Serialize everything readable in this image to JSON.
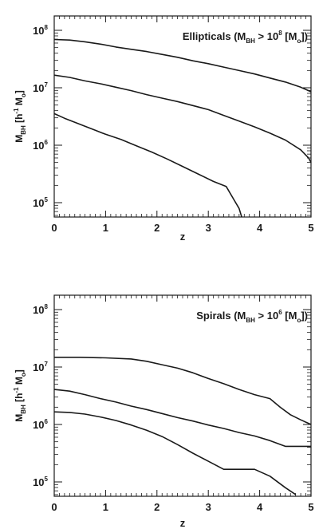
{
  "chart_data": [
    {
      "type": "line",
      "annotation": {
        "main": "Ellipticals (M",
        "sub": "BH",
        "rest": " > 10",
        "sup": "8",
        "tail": " [M",
        "sub2": "o",
        "end": "])"
      },
      "xlabel": "z",
      "ylabel": {
        "main": "M",
        "sub": "BH",
        "rest": " [h",
        "sup": "-1",
        "tail": " M",
        "sub2": "o",
        "end": "]"
      },
      "xlim": [
        0,
        5
      ],
      "ylim_log10": [
        4.75,
        8.25
      ],
      "yscale": "log",
      "xticks": [
        "0",
        "1",
        "2",
        "3",
        "4",
        "5"
      ],
      "yticks": [
        {
          "base": "10",
          "exp": "5"
        },
        {
          "base": "10",
          "exp": "6"
        },
        {
          "base": "10",
          "exp": "7"
        },
        {
          "base": "10",
          "exp": "8"
        }
      ],
      "grid": false,
      "series": [
        {
          "x": [
            0,
            0.3,
            0.6,
            0.9,
            1.2,
            1.5,
            1.8,
            2.1,
            2.4,
            2.7,
            3.0,
            3.3,
            3.6,
            3.9,
            4.2,
            4.5,
            4.8,
            5.0
          ],
          "log10_y": [
            7.84,
            7.83,
            7.8,
            7.76,
            7.71,
            7.67,
            7.63,
            7.58,
            7.53,
            7.47,
            7.42,
            7.36,
            7.3,
            7.24,
            7.17,
            7.1,
            7.01,
            6.93
          ]
        },
        {
          "x": [
            0,
            0.3,
            0.6,
            0.9,
            1.2,
            1.5,
            1.8,
            2.1,
            2.4,
            2.7,
            3.0,
            3.3,
            3.6,
            3.9,
            4.2,
            4.5,
            4.8,
            4.95,
            5.0
          ],
          "log10_y": [
            7.22,
            7.18,
            7.12,
            7.07,
            7.01,
            6.95,
            6.88,
            6.82,
            6.76,
            6.69,
            6.62,
            6.52,
            6.42,
            6.32,
            6.21,
            6.09,
            5.92,
            5.78,
            5.7
          ]
        },
        {
          "x": [
            0,
            0.2,
            0.4,
            0.6,
            0.8,
            1.0,
            1.3,
            1.6,
            1.9,
            2.2,
            2.5,
            2.8,
            3.1,
            3.35,
            3.5,
            3.6,
            3.65
          ],
          "log10_y": [
            6.55,
            6.47,
            6.4,
            6.33,
            6.26,
            6.19,
            6.1,
            5.99,
            5.88,
            5.76,
            5.63,
            5.5,
            5.37,
            5.28,
            5.05,
            4.9,
            4.75
          ]
        }
      ]
    },
    {
      "type": "line",
      "annotation": {
        "main": "Spirals (M",
        "sub": "BH",
        "rest": " > 10",
        "sup": "6",
        "tail": " [M",
        "sub2": "o",
        "end": "])"
      },
      "xlabel": "z",
      "ylabel": {
        "main": "M",
        "sub": "BH",
        "rest": " [h",
        "sup": "-1",
        "tail": " M",
        "sub2": "o",
        "end": "]"
      },
      "xlim": [
        0,
        5
      ],
      "ylim_log10": [
        4.75,
        8.25
      ],
      "yscale": "log",
      "xticks": [
        "0",
        "1",
        "2",
        "3",
        "4",
        "5"
      ],
      "yticks": [
        {
          "base": "10",
          "exp": "5"
        },
        {
          "base": "10",
          "exp": "6"
        },
        {
          "base": "10",
          "exp": "7"
        },
        {
          "base": "10",
          "exp": "8"
        }
      ],
      "grid": false,
      "series": [
        {
          "x": [
            0,
            0.5,
            1.0,
            1.5,
            1.8,
            2.1,
            2.4,
            2.7,
            3.0,
            3.3,
            3.6,
            3.9,
            4.2,
            4.4,
            4.6,
            4.8,
            5.0
          ],
          "log10_y": [
            7.17,
            7.17,
            7.16,
            7.14,
            7.1,
            7.04,
            6.98,
            6.9,
            6.8,
            6.71,
            6.61,
            6.52,
            6.45,
            6.3,
            6.17,
            6.08,
            6.0
          ]
        },
        {
          "x": [
            0,
            0.3,
            0.6,
            0.9,
            1.2,
            1.5,
            1.8,
            2.1,
            2.4,
            2.7,
            3.0,
            3.3,
            3.6,
            3.9,
            4.2,
            4.5,
            4.8,
            5.0
          ],
          "log10_y": [
            6.61,
            6.58,
            6.52,
            6.45,
            6.39,
            6.32,
            6.26,
            6.19,
            6.12,
            6.06,
            5.99,
            5.93,
            5.86,
            5.8,
            5.72,
            5.62,
            5.62,
            5.62
          ]
        },
        {
          "x": [
            0,
            0.3,
            0.6,
            0.9,
            1.2,
            1.5,
            1.8,
            2.1,
            2.4,
            2.7,
            3.0,
            3.3,
            3.6,
            3.9,
            4.2,
            4.5,
            4.7
          ],
          "log10_y": [
            6.22,
            6.21,
            6.18,
            6.13,
            6.07,
            5.99,
            5.9,
            5.79,
            5.65,
            5.5,
            5.36,
            5.22,
            5.22,
            5.22,
            5.1,
            4.9,
            4.78
          ]
        }
      ]
    }
  ]
}
